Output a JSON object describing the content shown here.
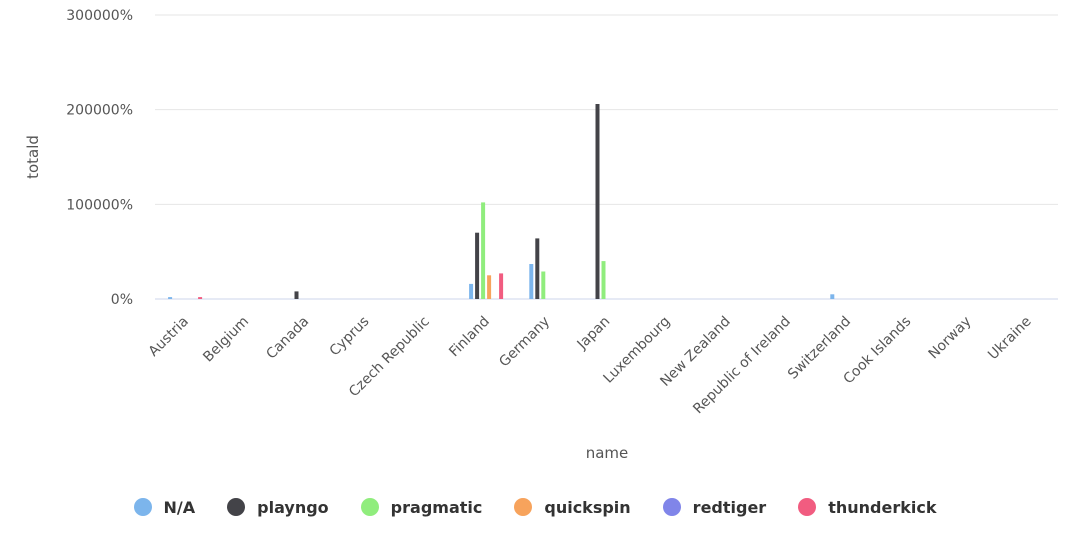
{
  "chart_data": {
    "type": "bar",
    "xlabel": "name",
    "ylabel": "totald",
    "ylim": [
      0,
      300000
    ],
    "y_ticks": [
      0,
      100000,
      200000,
      300000
    ],
    "y_tick_labels": [
      "0%",
      "100000%",
      "200000%",
      "300000%"
    ],
    "grid": true,
    "legend_position": "bottom",
    "categories": [
      "Austria",
      "Belgium",
      "Canada",
      "Cyprus",
      "Czech Republic",
      "Finland",
      "Germany",
      "Japan",
      "Luxembourg",
      "New Zealand",
      "Republic of Ireland",
      "Switzerland",
      "Cook Islands",
      "Norway",
      "Ukraine"
    ],
    "series": [
      {
        "name": "N/A",
        "color": "#7cb5ec",
        "values": [
          2000,
          0,
          0,
          0,
          0,
          16000,
          37000,
          0,
          0,
          0,
          0,
          5000,
          0,
          0,
          0
        ]
      },
      {
        "name": "playngo",
        "color": "#434348",
        "values": [
          0,
          0,
          8000,
          0,
          0,
          70000,
          64000,
          206000,
          0,
          0,
          0,
          0,
          0,
          0,
          0
        ]
      },
      {
        "name": "pragmatic",
        "color": "#90ed7d",
        "values": [
          0,
          0,
          0,
          0,
          0,
          102000,
          29000,
          40000,
          0,
          0,
          0,
          0,
          0,
          0,
          0
        ]
      },
      {
        "name": "quickspin",
        "color": "#f7a35c",
        "values": [
          0,
          0,
          0,
          0,
          0,
          25000,
          0,
          0,
          0,
          0,
          0,
          0,
          0,
          0,
          0
        ]
      },
      {
        "name": "redtiger",
        "color": "#8085e9",
        "values": [
          0,
          0,
          0,
          0,
          0,
          0,
          0,
          0,
          0,
          0,
          0,
          0,
          0,
          0,
          0
        ]
      },
      {
        "name": "thunderkick",
        "color": "#f15c80",
        "values": [
          2000,
          0,
          0,
          0,
          0,
          27000,
          0,
          0,
          0,
          0,
          0,
          0,
          0,
          0,
          0
        ]
      }
    ]
  }
}
